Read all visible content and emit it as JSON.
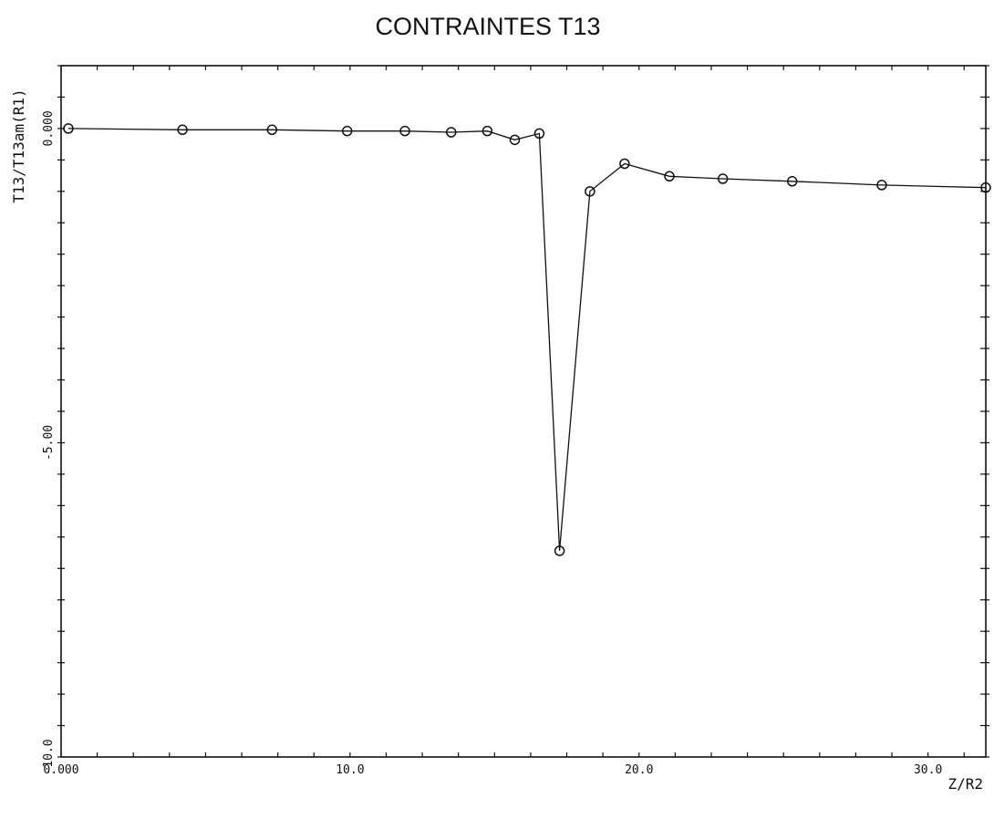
{
  "chart_data": {
    "type": "line",
    "title": "CONTRAINTES T13",
    "xlabel": "Z/R2",
    "ylabel": "T13/T13am(R1)",
    "xlim": [
      0,
      32
    ],
    "ylim": [
      -10,
      1
    ],
    "x_tick_labels": [
      {
        "value": 0,
        "label": "0.000"
      },
      {
        "value": 10,
        "label": "10.0"
      },
      {
        "value": 20,
        "label": "20.0"
      },
      {
        "value": 30,
        "label": "30.0"
      }
    ],
    "y_tick_labels": [
      {
        "value": 0,
        "label": "0.000"
      },
      {
        "value": -5,
        "label": "-5.00"
      },
      {
        "value": -10,
        "label": "-10.0"
      }
    ],
    "x_minor_step": 1.25,
    "y_minor_step": 0.5,
    "grid": false,
    "series": [
      {
        "marker": "circle",
        "x": [
          0.25,
          4.2,
          7.3,
          9.9,
          11.9,
          13.5,
          14.75,
          15.7,
          16.55,
          17.25,
          18.3,
          19.5,
          21.05,
          22.9,
          25.3,
          28.4,
          32.0
        ],
        "y": [
          0.0,
          -0.02,
          -0.02,
          -0.04,
          -0.04,
          -0.06,
          -0.04,
          -0.18,
          -0.08,
          -6.72,
          -1.0,
          -0.56,
          -0.76,
          -0.8,
          -0.84,
          -0.9,
          -0.94
        ]
      }
    ]
  }
}
